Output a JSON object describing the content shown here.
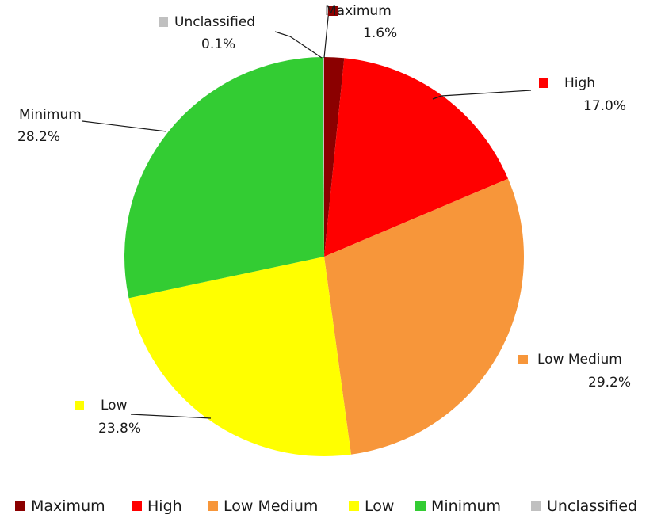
{
  "chart_data": {
    "type": "pie",
    "title": "",
    "legend_position": "bottom",
    "slices": [
      {
        "label": "Maximum",
        "percent_label": "1.6%",
        "value": 1.6,
        "color": "#8B0000"
      },
      {
        "label": "High",
        "percent_label": "17.0%",
        "value": 17.0,
        "color": "#FF0000"
      },
      {
        "label": "Low Medium",
        "percent_label": "29.2%",
        "value": 29.2,
        "color": "#F7963A"
      },
      {
        "label": "Low",
        "percent_label": "23.8%",
        "value": 23.8,
        "color": "#FFFF00"
      },
      {
        "label": "Minimum",
        "percent_label": "28.2%",
        "value": 28.2,
        "color": "#33CC33"
      },
      {
        "label": "Unclassified",
        "percent_label": "0.1%",
        "value": 0.1,
        "color": "#C0C0C0"
      }
    ],
    "legend": [
      "Maximum",
      "High",
      "Low Medium",
      "Low",
      "Minimum",
      "Unclassified"
    ]
  }
}
